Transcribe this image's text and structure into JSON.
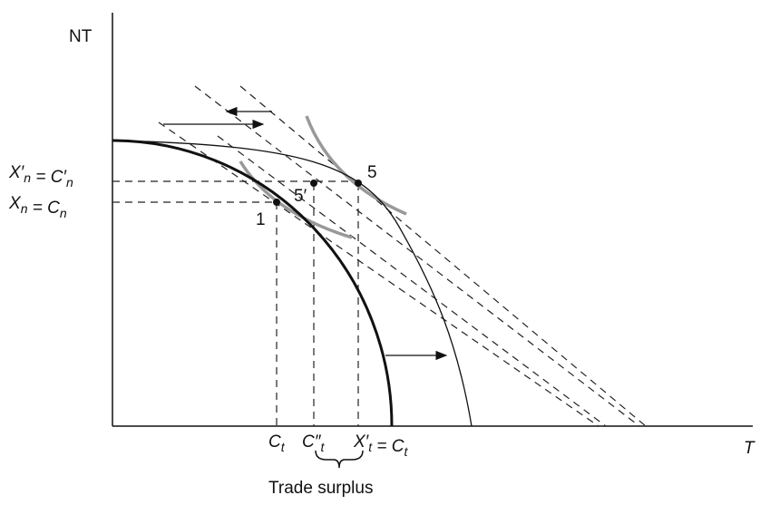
{
  "axes": {
    "y_label": "NT",
    "x_label": "T"
  },
  "y_labels": [
    [
      {
        "base": "X′",
        "sub": "n"
      },
      {
        "base": " = C′",
        "sub": "n"
      }
    ],
    [
      {
        "base": "X",
        "sub": "n"
      },
      {
        "base": " = C",
        "sub": "n"
      }
    ]
  ],
  "x_labels": [
    [
      {
        "base": "C",
        "sub": "t"
      }
    ],
    [
      {
        "base": "C″",
        "sub": "t"
      }
    ],
    [
      {
        "base": "X′",
        "sub": "t"
      },
      {
        "base": " = C",
        "sub": "t"
      }
    ]
  ],
  "points": [
    "1",
    "5′",
    "5"
  ],
  "brace_label": "Trade surplus"
}
